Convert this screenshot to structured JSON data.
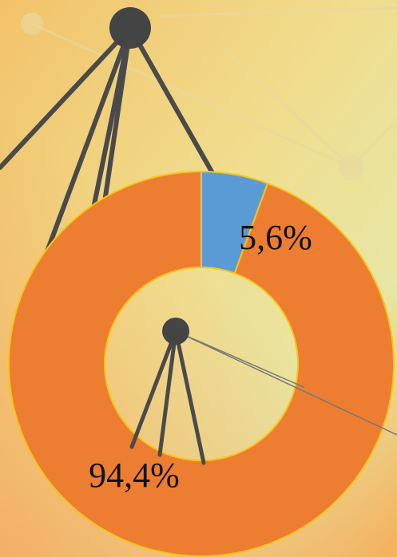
{
  "chart_data": {
    "type": "donut",
    "values": [
      5.6,
      94.4
    ],
    "value_labels": [
      "5,6%",
      "94,4%"
    ],
    "colors": [
      "#5b9bd5",
      "#ed7d31"
    ]
  }
}
